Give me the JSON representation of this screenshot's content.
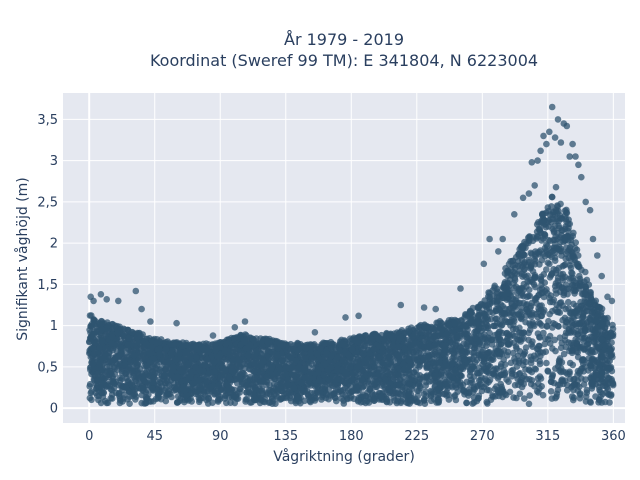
{
  "chart_data": {
    "type": "scatter",
    "title_lines": [
      "År 1979 - 2019",
      "Koordinat (Sweref 99 TM): E 341804, N 6223004"
    ],
    "xlabel": "Vågriktning (grader)",
    "ylabel": "Signifikant våghöjd (m)",
    "xlim": [
      -18,
      368
    ],
    "ylim": [
      -0.18,
      3.82
    ],
    "xticks": [
      0,
      45,
      90,
      135,
      180,
      225,
      270,
      315,
      360
    ],
    "xtick_labels": [
      "0",
      "45",
      "90",
      "135",
      "180",
      "225",
      "270",
      "315",
      "360"
    ],
    "yticks": [
      0,
      0.5,
      1,
      1.5,
      2,
      2.5,
      3,
      3.5
    ],
    "ytick_labels": [
      "0",
      "0,5",
      "1",
      "1,5",
      "2",
      "2,5",
      "3",
      "3,5"
    ],
    "grid": true,
    "marker_color": "#2f5470",
    "plot_background": "#e5e8f0",
    "envelope": {
      "direction": [
        0,
        5,
        10,
        20,
        30,
        45,
        60,
        75,
        90,
        105,
        120,
        135,
        150,
        165,
        180,
        195,
        210,
        225,
        240,
        255,
        270,
        280,
        290,
        300,
        310,
        315,
        320,
        325,
        330,
        335,
        340,
        345,
        350,
        355,
        360
      ],
      "upper_height": [
        1.15,
        1.1,
        1.05,
        1.0,
        0.95,
        0.85,
        0.8,
        0.78,
        0.8,
        0.9,
        0.85,
        0.8,
        0.78,
        0.8,
        0.85,
        0.9,
        0.92,
        1.0,
        1.05,
        1.1,
        1.3,
        1.55,
        1.8,
        2.05,
        2.3,
        2.55,
        2.7,
        2.55,
        2.3,
        2.0,
        1.7,
        1.4,
        1.25,
        1.15,
        1.0
      ],
      "min_height": 0.05
    },
    "outliers": [
      {
        "x": 1,
        "y": 1.35
      },
      {
        "x": 3,
        "y": 1.3
      },
      {
        "x": 8,
        "y": 1.38
      },
      {
        "x": 12,
        "y": 1.32
      },
      {
        "x": 20,
        "y": 1.3
      },
      {
        "x": 32,
        "y": 1.42
      },
      {
        "x": 36,
        "y": 1.2
      },
      {
        "x": 42,
        "y": 1.05
      },
      {
        "x": 60,
        "y": 1.03
      },
      {
        "x": 85,
        "y": 0.88
      },
      {
        "x": 100,
        "y": 0.98
      },
      {
        "x": 107,
        "y": 1.05
      },
      {
        "x": 155,
        "y": 0.92
      },
      {
        "x": 176,
        "y": 1.1
      },
      {
        "x": 185,
        "y": 1.12
      },
      {
        "x": 214,
        "y": 1.25
      },
      {
        "x": 230,
        "y": 1.22
      },
      {
        "x": 238,
        "y": 1.2
      },
      {
        "x": 255,
        "y": 1.45
      },
      {
        "x": 271,
        "y": 1.75
      },
      {
        "x": 275,
        "y": 2.05
      },
      {
        "x": 281,
        "y": 1.9
      },
      {
        "x": 284,
        "y": 2.05
      },
      {
        "x": 292,
        "y": 2.35
      },
      {
        "x": 298,
        "y": 2.55
      },
      {
        "x": 302,
        "y": 2.6
      },
      {
        "x": 304,
        "y": 2.98
      },
      {
        "x": 306,
        "y": 2.7
      },
      {
        "x": 308,
        "y": 3.0
      },
      {
        "x": 310,
        "y": 3.12
      },
      {
        "x": 312,
        "y": 3.3
      },
      {
        "x": 314,
        "y": 3.2
      },
      {
        "x": 316,
        "y": 3.35
      },
      {
        "x": 318,
        "y": 3.65
      },
      {
        "x": 320,
        "y": 3.28
      },
      {
        "x": 322,
        "y": 3.5
      },
      {
        "x": 324,
        "y": 3.22
      },
      {
        "x": 326,
        "y": 3.45
      },
      {
        "x": 328,
        "y": 3.42
      },
      {
        "x": 330,
        "y": 3.05
      },
      {
        "x": 332,
        "y": 3.2
      },
      {
        "x": 334,
        "y": 3.05
      },
      {
        "x": 336,
        "y": 2.95
      },
      {
        "x": 338,
        "y": 2.8
      },
      {
        "x": 341,
        "y": 2.5
      },
      {
        "x": 344,
        "y": 2.4
      },
      {
        "x": 346,
        "y": 2.05
      },
      {
        "x": 349,
        "y": 1.85
      },
      {
        "x": 352,
        "y": 1.6
      },
      {
        "x": 356,
        "y": 1.35
      },
      {
        "x": 359,
        "y": 1.3
      }
    ]
  }
}
